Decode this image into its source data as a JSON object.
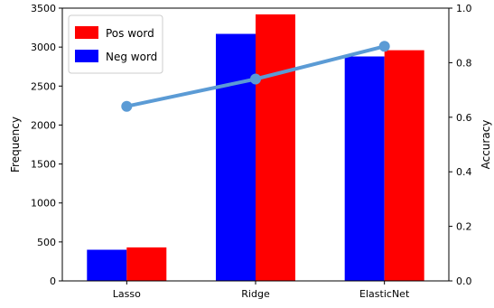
{
  "chart_data": {
    "type": "bar",
    "categories": [
      "Lasso",
      "Ridge",
      "ElasticNet"
    ],
    "series": [
      {
        "name": "Neg word",
        "kind": "bar",
        "axis": "left",
        "color": "#0000ff",
        "values": [
          400,
          3170,
          2880
        ]
      },
      {
        "name": "Pos word",
        "kind": "bar",
        "axis": "left",
        "color": "#ff0000",
        "values": [
          430,
          3420,
          2960
        ]
      },
      {
        "name": "",
        "kind": "line",
        "axis": "right",
        "color": "#5b9bd5",
        "values": [
          0.64,
          0.74,
          0.86
        ]
      }
    ],
    "xlabel": "",
    "ylabel": "Frequency",
    "y2label": "Accuracy",
    "ylim": [
      0,
      3500
    ],
    "y2lim": [
      0,
      1.0
    ],
    "yticks": [
      0,
      500,
      1000,
      1500,
      2000,
      2500,
      3000,
      3500
    ],
    "y2ticks": [
      "0.0",
      "0.2",
      "0.4",
      "0.6",
      "0.8",
      "1.0"
    ],
    "legend": {
      "placement": "top-left",
      "entries": [
        {
          "label": "Pos word",
          "color": "#ff0000"
        },
        {
          "label": "Neg word",
          "color": "#0000ff"
        }
      ]
    },
    "grid": false
  }
}
